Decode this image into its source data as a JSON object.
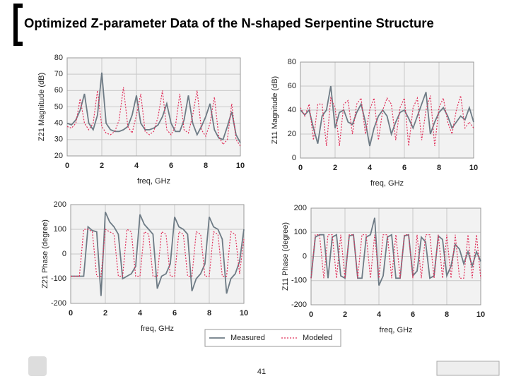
{
  "title": "Optimized Z-parameter Data of the N-shaped Serpentine Structure",
  "page_number": "41",
  "chart_data": [
    {
      "type": "line",
      "ylabel": "Z21 Magnitude (dB)",
      "xlabel": "freq, GHz",
      "x": [
        0,
        0.25,
        0.5,
        0.75,
        1,
        1.25,
        1.5,
        1.75,
        2,
        2.25,
        2.5,
        2.75,
        3,
        3.25,
        3.5,
        3.75,
        4,
        4.25,
        4.5,
        4.75,
        5,
        5.25,
        5.5,
        5.75,
        6,
        6.25,
        6.5,
        6.75,
        7,
        7.25,
        7.5,
        7.75,
        8,
        8.25,
        8.5,
        8.75,
        9,
        9.25,
        9.5,
        9.75,
        10
      ],
      "xlim": [
        0,
        10
      ],
      "xticks": [
        0,
        2,
        4,
        6,
        8,
        10
      ],
      "ylim": [
        20,
        80
      ],
      "yticks": [
        20,
        30,
        40,
        50,
        60,
        70,
        80
      ],
      "grid": true,
      "series": [
        {
          "name": "Measured",
          "color": "#6e7b85",
          "line_style": "solid",
          "values": [
            40,
            39,
            42,
            48,
            58,
            40,
            36,
            45,
            71,
            40,
            36,
            35,
            35,
            36,
            38,
            45,
            57,
            40,
            36,
            36,
            37,
            39,
            44,
            52,
            40,
            35,
            35,
            42,
            57,
            40,
            33,
            38,
            44,
            52,
            36,
            31,
            30,
            38,
            47,
            33,
            28
          ]
        },
        {
          "name": "Modeled",
          "color": "#e0305a",
          "line_style": "dotted",
          "values": [
            38,
            37,
            40,
            55,
            40,
            36,
            40,
            60,
            38,
            34,
            33,
            35,
            42,
            62,
            38,
            34,
            45,
            58,
            35,
            33,
            35,
            44,
            60,
            36,
            33,
            38,
            58,
            36,
            34,
            45,
            60,
            36,
            32,
            40,
            56,
            32,
            27,
            30,
            52,
            30,
            26
          ]
        }
      ]
    },
    {
      "type": "line",
      "ylabel": "Z11 Magnitude (dB)",
      "xlabel": "freq, GHz",
      "x": [
        0,
        0.25,
        0.5,
        0.75,
        1,
        1.25,
        1.5,
        1.75,
        2,
        2.25,
        2.5,
        2.75,
        3,
        3.25,
        3.5,
        3.75,
        4,
        4.25,
        4.5,
        4.75,
        5,
        5.25,
        5.5,
        5.75,
        6,
        6.25,
        6.5,
        6.75,
        7,
        7.25,
        7.5,
        7.75,
        8,
        8.25,
        8.5,
        8.75,
        9,
        9.25,
        9.5,
        9.75,
        10
      ],
      "xlim": [
        0,
        10
      ],
      "xticks": [
        0,
        2,
        4,
        6,
        8,
        10
      ],
      "ylim": [
        0,
        80
      ],
      "yticks": [
        0,
        20,
        40,
        60,
        80
      ],
      "grid": true,
      "series": [
        {
          "color": "#6e7b85",
          "line_style": "solid",
          "values": [
            40,
            36,
            40,
            25,
            12,
            35,
            40,
            60,
            25,
            38,
            40,
            30,
            28,
            38,
            45,
            30,
            10,
            25,
            35,
            40,
            35,
            20,
            30,
            38,
            40,
            33,
            25,
            35,
            45,
            55,
            20,
            30,
            38,
            42,
            35,
            25,
            30,
            35,
            32,
            42,
            30
          ]
        },
        {
          "color": "#e0305a",
          "line_style": "dotted",
          "values": [
            42,
            35,
            45,
            15,
            45,
            45,
            10,
            50,
            42,
            10,
            45,
            48,
            20,
            45,
            50,
            20,
            40,
            50,
            15,
            40,
            50,
            45,
            15,
            42,
            50,
            10,
            42,
            50,
            15,
            40,
            52,
            10,
            42,
            50,
            30,
            20,
            40,
            52,
            25,
            30,
            25
          ]
        }
      ]
    },
    {
      "type": "line",
      "ylabel": "Z21 Phase (degree)",
      "xlabel": "freq, GHz",
      "x": [
        0,
        0.25,
        0.5,
        0.75,
        1,
        1.25,
        1.5,
        1.75,
        2,
        2.25,
        2.5,
        2.75,
        3,
        3.25,
        3.5,
        3.75,
        4,
        4.25,
        4.5,
        4.75,
        5,
        5.25,
        5.5,
        5.75,
        6,
        6.25,
        6.5,
        6.75,
        7,
        7.25,
        7.5,
        7.75,
        8,
        8.25,
        8.5,
        8.75,
        9,
        9.25,
        9.5,
        9.75,
        10
      ],
      "xlim": [
        0,
        10
      ],
      "xticks": [
        0,
        2,
        4,
        6,
        8,
        10
      ],
      "ylim": [
        -200,
        200
      ],
      "yticks": [
        -200,
        -100,
        0,
        100,
        200
      ],
      "grid": true,
      "series": [
        {
          "color": "#6e7b85",
          "line_style": "solid",
          "values": [
            -90,
            -90,
            -90,
            -90,
            110,
            95,
            90,
            -170,
            170,
            130,
            110,
            80,
            -100,
            -90,
            -80,
            -50,
            160,
            120,
            100,
            80,
            -140,
            -90,
            -80,
            -40,
            150,
            110,
            100,
            80,
            -150,
            -100,
            -80,
            -40,
            150,
            110,
            100,
            60,
            -160,
            -100,
            -80,
            -30,
            100
          ]
        },
        {
          "color": "#e0305a",
          "line_style": "dotted",
          "values": [
            -90,
            -90,
            -90,
            100,
            100,
            90,
            -90,
            -90,
            100,
            90,
            80,
            -90,
            -90,
            100,
            90,
            -90,
            -90,
            90,
            80,
            -90,
            -90,
            90,
            80,
            -90,
            -90,
            90,
            80,
            -90,
            -90,
            90,
            80,
            -90,
            -90,
            90,
            80,
            -90,
            -90,
            90,
            80,
            -80,
            60
          ]
        }
      ]
    },
    {
      "type": "line",
      "ylabel": "Z11 Phase (degree)",
      "xlabel": "freq, GHz",
      "x": [
        0,
        0.25,
        0.5,
        0.75,
        1,
        1.25,
        1.5,
        1.75,
        2,
        2.25,
        2.5,
        2.75,
        3,
        3.25,
        3.5,
        3.75,
        4,
        4.25,
        4.5,
        4.75,
        5,
        5.25,
        5.5,
        5.75,
        6,
        6.25,
        6.5,
        6.75,
        7,
        7.25,
        7.5,
        7.75,
        8,
        8.25,
        8.5,
        8.75,
        9,
        9.25,
        9.5,
        9.75,
        10
      ],
      "xlim": [
        0,
        10
      ],
      "xticks": [
        0,
        2,
        4,
        6,
        8,
        10
      ],
      "ylim": [
        -200,
        200
      ],
      "yticks": [
        -200,
        -100,
        0,
        100,
        200
      ],
      "grid": true,
      "series": [
        {
          "color": "#6e7b85",
          "line_style": "solid",
          "values": [
            -90,
            80,
            90,
            90,
            -90,
            80,
            90,
            -80,
            -90,
            85,
            90,
            -90,
            -90,
            80,
            90,
            160,
            -120,
            -80,
            80,
            90,
            -90,
            -90,
            85,
            90,
            -80,
            -60,
            80,
            60,
            -90,
            -80,
            85,
            70,
            -80,
            -40,
            50,
            30,
            -30,
            20,
            -40,
            20,
            -20
          ]
        },
        {
          "color": "#e0305a",
          "line_style": "dotted",
          "values": [
            -90,
            90,
            90,
            -90,
            90,
            90,
            -90,
            90,
            -90,
            90,
            90,
            -90,
            90,
            90,
            -90,
            90,
            -90,
            90,
            90,
            -90,
            90,
            -90,
            90,
            90,
            -90,
            90,
            -90,
            90,
            90,
            -90,
            90,
            -90,
            90,
            -90,
            90,
            -90,
            -90,
            90,
            -90,
            90,
            -90
          ]
        }
      ]
    }
  ]
}
